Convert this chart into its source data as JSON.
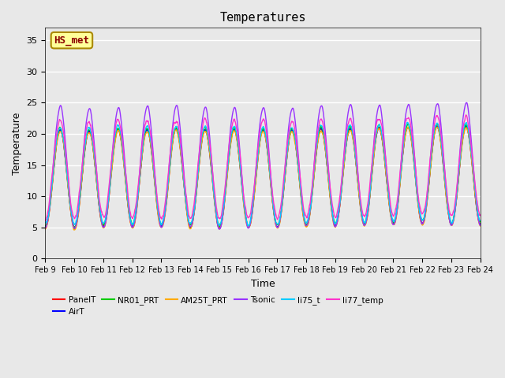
{
  "title": "Temperatures",
  "xlabel": "Time",
  "ylabel": "Temperature",
  "ylim": [
    0,
    37
  ],
  "yticks": [
    0,
    5,
    10,
    15,
    20,
    25,
    30,
    35
  ],
  "background_color": "#e8e8e8",
  "plot_bg_color": "#e8e8e8",
  "date_labels": [
    "Feb 9",
    "Feb 10",
    "Feb 11",
    "Feb 12",
    "Feb 13",
    "Feb 14",
    "Feb 15",
    "Feb 16",
    "Feb 17",
    "Feb 18",
    "Feb 19",
    "Feb 20",
    "Feb 21",
    "Feb 22",
    "Feb 23",
    "Feb 24"
  ],
  "legend_entries": [
    "PanelT",
    "AirT",
    "NR01_PRT",
    "AM25T_PRT",
    "Tsonic",
    "li75_t",
    "li77_temp"
  ],
  "legend_colors": [
    "#ff0000",
    "#0000ff",
    "#00cc00",
    "#ffaa00",
    "#9933ff",
    "#00ccff",
    "#ff33cc"
  ],
  "annotation_text": "HS_met",
  "annotation_bg": "#ffff99",
  "annotation_border": "#aa8800",
  "grid_color": "#ffffff",
  "n_points": 1440
}
